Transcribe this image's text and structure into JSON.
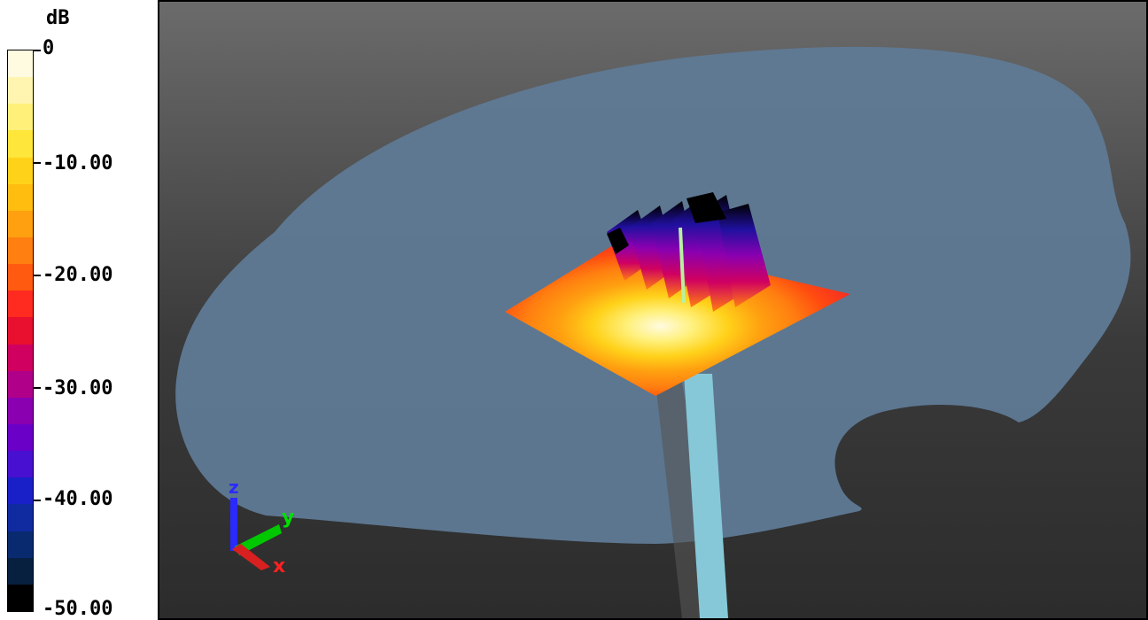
{
  "colorbar": {
    "unit": "dB",
    "ticks": [
      {
        "label": "0",
        "value": 0
      },
      {
        "label": "-10.00",
        "value": -10
      },
      {
        "label": "-20.00",
        "value": -20
      },
      {
        "label": "-30.00",
        "value": -30
      },
      {
        "label": "-40.00",
        "value": -40
      },
      {
        "label": "-50.00",
        "value": -50
      }
    ],
    "range": [
      -50,
      0
    ],
    "colors": [
      "#fffbe0",
      "#fff5b0",
      "#fff07a",
      "#ffe63a",
      "#ffd21a",
      "#ffbd10",
      "#ffa010",
      "#ff7f10",
      "#ff5a10",
      "#ff2a20",
      "#e8102e",
      "#d00060",
      "#b0008a",
      "#8a00b0",
      "#6a00c8",
      "#4810d0",
      "#1a20c8",
      "#102aa0",
      "#0a2a70",
      "#082040",
      "#000000"
    ]
  },
  "axes_triad": {
    "z_label": "z",
    "y_label": "y",
    "x_label": "x",
    "z_color": "#2a2aff",
    "y_color": "#00e000",
    "x_color": "#ff2020"
  },
  "scene": {
    "background_top": "#6b6b6b",
    "background_bottom": "#2c2c2c",
    "phantom_color": "#5f7a96",
    "feed_color": "#86c8d8"
  }
}
